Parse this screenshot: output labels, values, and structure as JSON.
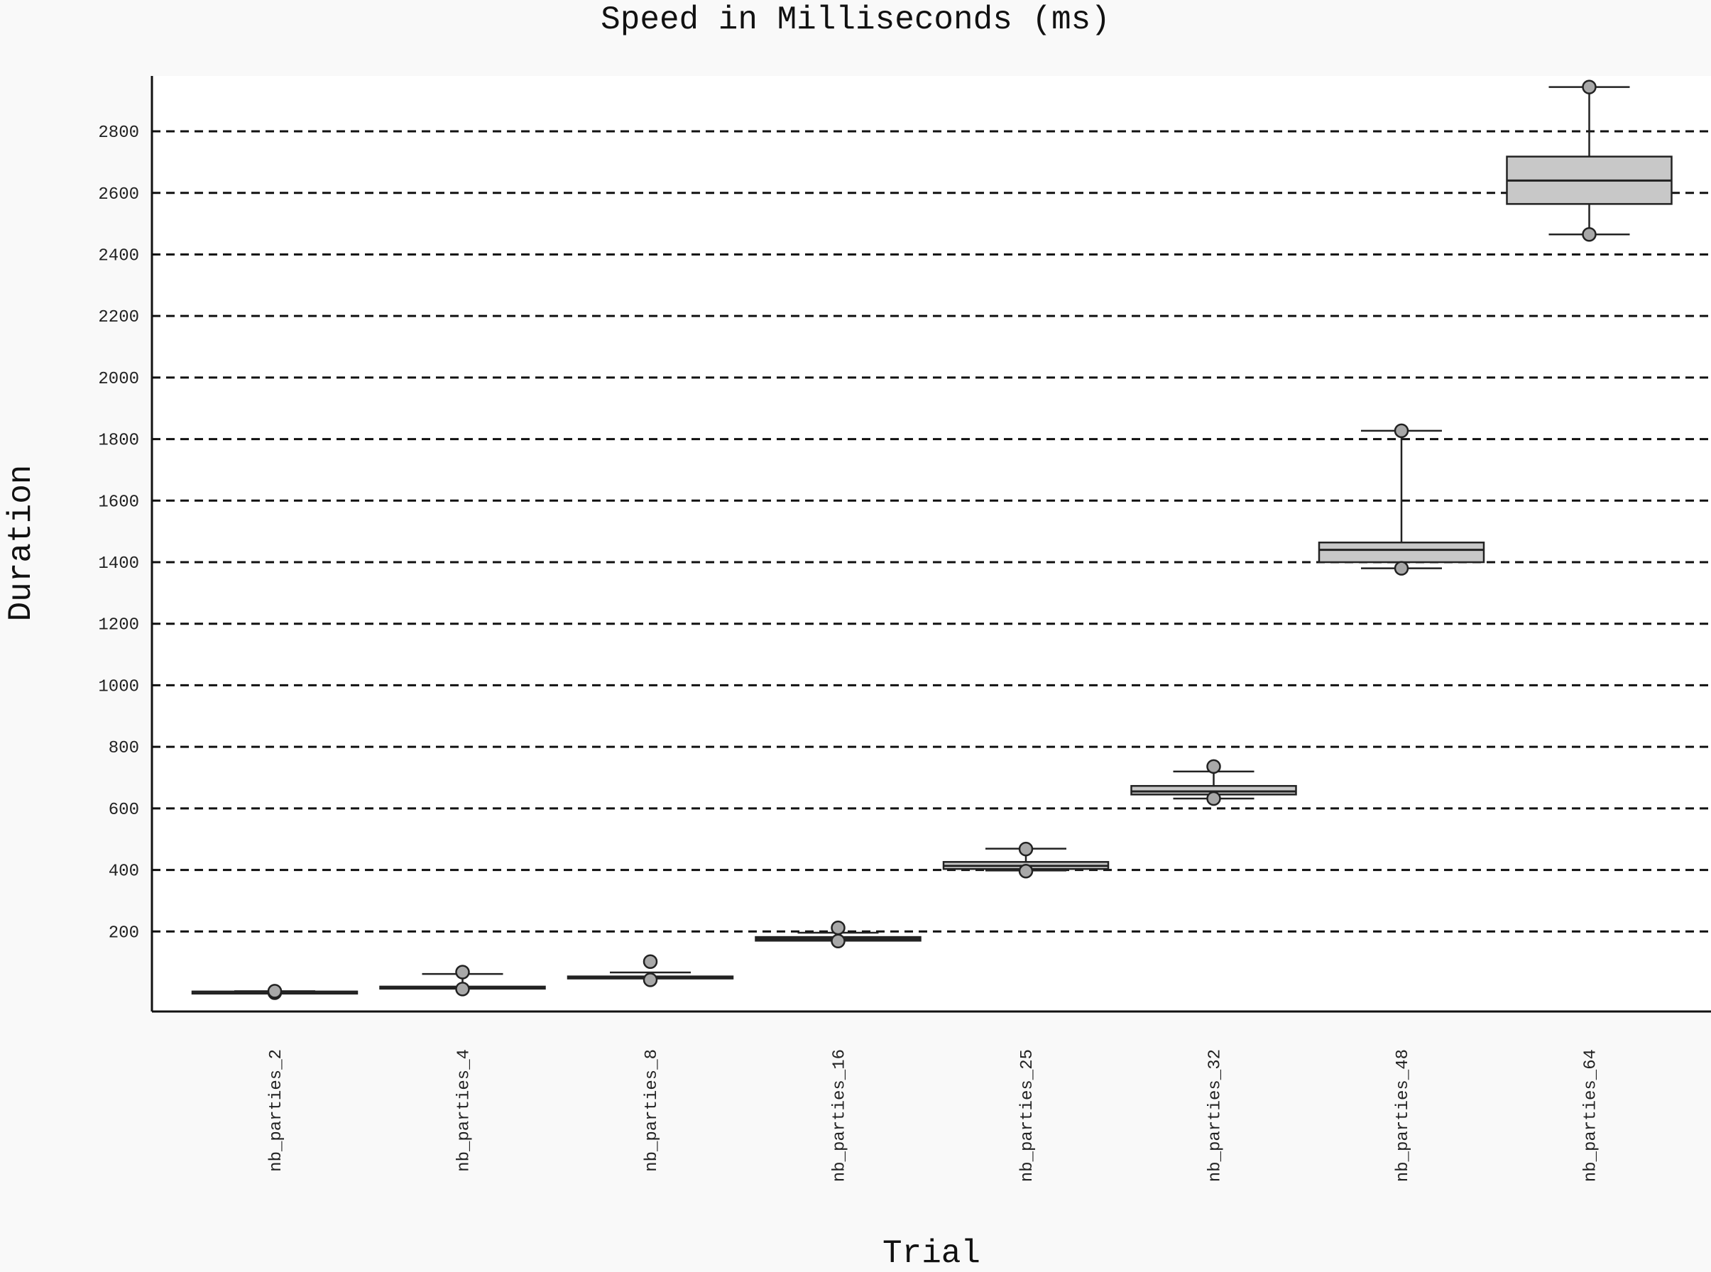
{
  "chart_data": {
    "type": "box",
    "title": "Speed in Milliseconds (ms)",
    "xlabel": "Trial",
    "ylabel": "Duration",
    "ylim": [
      -60,
      2980
    ],
    "yticks": [
      200,
      400,
      600,
      800,
      1000,
      1200,
      1400,
      1600,
      1800,
      2000,
      2200,
      2400,
      2600,
      2800
    ],
    "grid": "horizontal dashed",
    "categories": [
      "nb_parties_2",
      "nb_parties_4",
      "nb_parties_8",
      "nb_parties_16",
      "nb_parties_25",
      "nb_parties_32",
      "nb_parties_48",
      "nb_parties_64"
    ],
    "boxes": [
      {
        "category": "nb_parties_2",
        "whisker_low": 3,
        "q1": 3,
        "median": 4,
        "q3": 5,
        "whisker_high": 6,
        "outliers": [
          1,
          6
        ]
      },
      {
        "category": "nb_parties_4",
        "whisker_low": 17,
        "q1": 17,
        "median": 19,
        "q3": 21,
        "whisker_high": 62,
        "outliers": [
          13,
          68
        ]
      },
      {
        "category": "nb_parties_8",
        "whisker_low": 48,
        "q1": 49,
        "median": 51,
        "q3": 54,
        "whisker_high": 67,
        "outliers": [
          43,
          102
        ]
      },
      {
        "category": "nb_parties_16",
        "whisker_low": 170,
        "q1": 170,
        "median": 176,
        "q3": 182,
        "whisker_high": 196,
        "outliers": [
          169,
          212
        ]
      },
      {
        "category": "nb_parties_25",
        "whisker_low": 398,
        "q1": 403,
        "median": 413,
        "q3": 426,
        "whisker_high": 469,
        "outliers": [
          396,
          468
        ]
      },
      {
        "category": "nb_parties_32",
        "whisker_low": 632,
        "q1": 645,
        "median": 655,
        "q3": 673,
        "whisker_high": 720,
        "outliers": [
          632,
          736
        ]
      },
      {
        "category": "nb_parties_48",
        "whisker_low": 1380,
        "q1": 1400,
        "median": 1440,
        "q3": 1464,
        "whisker_high": 1827,
        "outliers": [
          1380,
          1827
        ]
      },
      {
        "category": "nb_parties_64",
        "whisker_low": 2465,
        "q1": 2564,
        "median": 2640,
        "q3": 2718,
        "whisker_high": 2944,
        "outliers": [
          2465,
          2944
        ]
      }
    ],
    "colors": {
      "box_fill": "#c8c8c8",
      "box_stroke": "#222222",
      "outlier_fill": "#a8a8a8",
      "grid": "#111111",
      "axis": "#111111",
      "plot_background": "#ffffff",
      "page_background": "#f9f9f9"
    }
  }
}
